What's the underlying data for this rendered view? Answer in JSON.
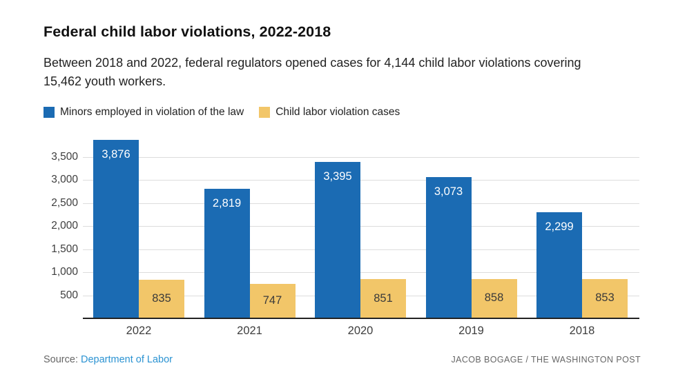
{
  "header": {
    "title": "Federal child labor violations, 2022-2018",
    "subtitle": "Between 2018 and 2022, federal regulators opened cases for 4,144 child labor violations covering 15,462 youth workers."
  },
  "legend": [
    {
      "label": "Minors employed in violation of the law",
      "color": "#1b6bb3"
    },
    {
      "label": "Child labor violation cases",
      "color": "#f2c669"
    }
  ],
  "chart_data": {
    "type": "bar",
    "categories": [
      "2022",
      "2021",
      "2020",
      "2019",
      "2018"
    ],
    "series": [
      {
        "name": "Minors employed in violation of the law",
        "color": "#1b6bb3",
        "values": [
          3876,
          2819,
          3395,
          3073,
          2299
        ],
        "labels": [
          "3,876",
          "2,819",
          "3,395",
          "3,073",
          "2,299"
        ]
      },
      {
        "name": "Child labor violation cases",
        "color": "#f2c669",
        "values": [
          835,
          747,
          851,
          858,
          853
        ],
        "labels": [
          "835",
          "747",
          "851",
          "858",
          "853"
        ]
      }
    ],
    "y_ticks": [
      500,
      1000,
      1500,
      2000,
      2500,
      3000,
      3500
    ],
    "y_tick_labels": [
      "500",
      "1,000",
      "1,500",
      "2,000",
      "2,500",
      "3,000",
      "3,500"
    ],
    "ylim": [
      0,
      3900
    ],
    "grid": true,
    "grid_color": "#dcdcdc",
    "axis_color": "#222222",
    "legend_position": "top",
    "title": "Federal child labor violations, 2022-2018"
  },
  "footer": {
    "source_prefix": "Source:",
    "source_link": "Department of Labor",
    "source_link_color": "#2b93d2",
    "credit": "JACOB BOGAGE / THE WASHINGTON POST"
  }
}
